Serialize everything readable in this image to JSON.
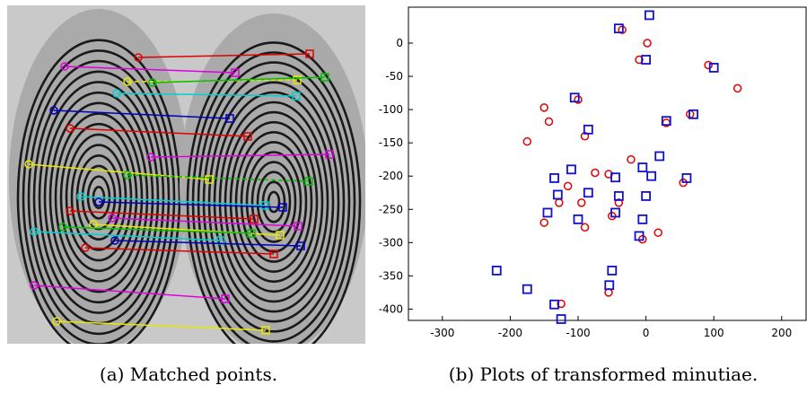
{
  "captions": [
    "(a) Matched points.",
    "(b) Plots of transformed minutiae."
  ],
  "chart_data": {
    "type": "scatter",
    "xlim": [
      -350,
      236
    ],
    "ylim": [
      -417,
      54
    ],
    "xticks": [
      -300,
      -200,
      -100,
      0,
      100,
      200
    ],
    "yticks": [
      -400,
      -350,
      -300,
      -250,
      -200,
      -150,
      -100,
      -50,
      0
    ],
    "series": [
      {
        "marker": "circle",
        "color": "#e00000",
        "x": [
          -35,
          2,
          -10,
          92,
          135,
          -100,
          -150,
          -143,
          65,
          30,
          -90,
          -175,
          -22,
          -115,
          -55,
          -75,
          55,
          -128,
          -95,
          -40,
          -50,
          -90,
          -150,
          18,
          -5,
          -55,
          -125
        ],
        "values": [
          20,
          0,
          -25,
          -33,
          -68,
          -85,
          -97,
          -118,
          -107,
          -120,
          -140,
          -148,
          -175,
          -215,
          -197,
          -195,
          -210,
          -240,
          -240,
          -240,
          -260,
          -277,
          -270,
          -285,
          -295,
          -375,
          -392
        ]
      },
      {
        "marker": "square",
        "color": "#1010d0",
        "x": [
          5,
          -40,
          0,
          100,
          -105,
          70,
          30,
          -85,
          20,
          -110,
          -5,
          -135,
          -45,
          8,
          60,
          -85,
          -130,
          -40,
          0,
          -100,
          -145,
          -45,
          -5,
          -10,
          -220,
          -50,
          -175,
          -135,
          -125,
          -54
        ],
        "values": [
          42,
          22,
          -25,
          -37,
          -82,
          -107,
          -117,
          -130,
          -170,
          -190,
          -187,
          -203,
          -202,
          -200,
          -203,
          -225,
          -228,
          -230,
          -230,
          -265,
          -255,
          -255,
          -265,
          -290,
          -342,
          -342,
          -370,
          -393,
          -415,
          -364
        ]
      }
    ]
  }
}
